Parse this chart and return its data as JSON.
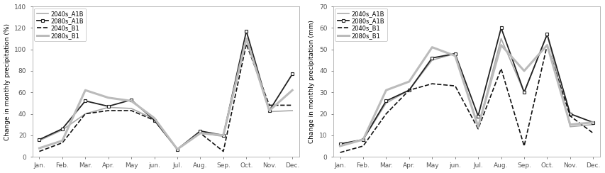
{
  "months": [
    "Jan.",
    "Feb.",
    "Mar.",
    "Apr.",
    "May",
    "jun.",
    "Jul.",
    "Aug.",
    "Sep.",
    "Oct.",
    "Nov.",
    "Dec."
  ],
  "left": {
    "ylabel": "Change in monthly precipitation (%)",
    "ylim": [
      0,
      140
    ],
    "yticks": [
      0,
      20,
      40,
      60,
      80,
      100,
      120,
      140
    ],
    "series": {
      "2040s_A1B": {
        "color": "#aaaaaa",
        "lw": 1.2,
        "linestyle": "-",
        "marker": null,
        "values": [
          15,
          25,
          40,
          46,
          45,
          35,
          7,
          22,
          19,
          110,
          42,
          43
        ]
      },
      "2080s_A1B": {
        "color": "#222222",
        "lw": 1.3,
        "linestyle": "-",
        "marker": "s",
        "markersize": 3.5,
        "values": [
          16,
          26,
          52,
          47,
          53,
          34,
          7,
          24,
          20,
          117,
          43,
          77
        ]
      },
      "2040s_B1": {
        "color": "#111111",
        "lw": 1.2,
        "linestyle": "--",
        "marker": null,
        "values": [
          5,
          13,
          40,
          43,
          43,
          34,
          7,
          22,
          5,
          105,
          48,
          48
        ]
      },
      "2080s_B1": {
        "color": "#bbbbbb",
        "lw": 2.2,
        "linestyle": "-",
        "marker": null,
        "values": [
          8,
          15,
          62,
          55,
          52,
          36,
          7,
          22,
          20,
          110,
          43,
          62
        ]
      }
    }
  },
  "right": {
    "ylabel": "Change in monthly precipitation (mm)",
    "ylim": [
      0,
      70
    ],
    "yticks": [
      0,
      10,
      20,
      30,
      40,
      50,
      60,
      70
    ],
    "series": {
      "2040s_A1B": {
        "color": "#aaaaaa",
        "lw": 1.2,
        "linestyle": "-",
        "marker": null,
        "values": [
          5,
          8,
          25,
          31,
          45,
          48,
          14,
          55,
          30,
          57,
          14,
          15
        ]
      },
      "2080s_A1B": {
        "color": "#222222",
        "lw": 1.3,
        "linestyle": "-",
        "marker": "s",
        "markersize": 3.5,
        "values": [
          6,
          8,
          26,
          31,
          46,
          48,
          19,
          60,
          30,
          57,
          20,
          16
        ]
      },
      "2040s_B1": {
        "color": "#111111",
        "lw": 1.2,
        "linestyle": "--",
        "marker": null,
        "values": [
          2,
          5,
          20,
          31,
          34,
          33,
          13,
          41,
          5,
          52,
          19,
          11
        ]
      },
      "2080s_B1": {
        "color": "#bbbbbb",
        "lw": 2.2,
        "linestyle": "-",
        "marker": null,
        "values": [
          5,
          8,
          31,
          35,
          51,
          47,
          14,
          52,
          40,
          52,
          15,
          16
        ]
      }
    }
  },
  "legend_order": [
    "2040s_A1B",
    "2080s_A1B",
    "2040s_B1",
    "2080s_B1"
  ],
  "background_color": "#ffffff"
}
